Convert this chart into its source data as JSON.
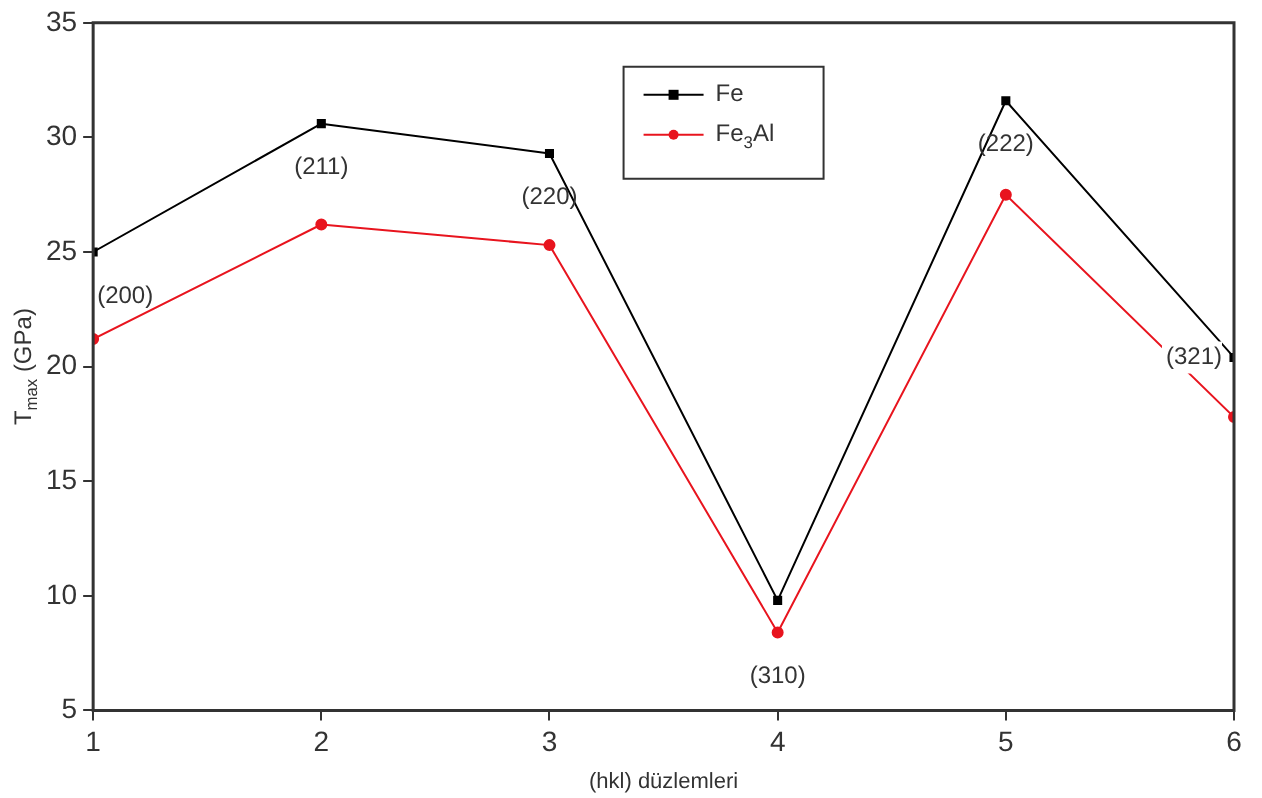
{
  "chart_data": {
    "type": "line",
    "xlabel": "(hkl) düzlemleri",
    "ylabel": "T$_{max}$ (GPa)",
    "x": [
      1,
      2,
      3,
      4,
      5,
      6
    ],
    "series": [
      {
        "name": "Fe",
        "color": "#000000",
        "values": [
          25,
          30.6,
          29.3,
          9.8,
          31.6,
          20.4
        ],
        "marker": "square"
      },
      {
        "name": "Fe$_{3}$Al",
        "color": "#e8141e",
        "values": [
          21.2,
          26.2,
          25.3,
          8.4,
          27.5,
          17.8
        ],
        "marker": "circle"
      }
    ],
    "xlim": [
      1,
      6
    ],
    "xticks": [
      1,
      2,
      3,
      4,
      5,
      6
    ],
    "ylim": [
      5,
      35
    ],
    "yticks": [
      5,
      10,
      15,
      20,
      25,
      30,
      35
    ],
    "grid": false,
    "legend": "top",
    "line_style": "solid",
    "annotations": [
      {
        "text": "(200)",
        "x": 1,
        "y": 25
      },
      {
        "text": "(211)",
        "x": 2,
        "y": 30.6
      },
      {
        "text": "(220)",
        "x": 3,
        "y": 29.3
      },
      {
        "text": "(310)",
        "x": 4,
        "y": 8.4
      },
      {
        "text": "(222)",
        "x": 5,
        "y": 31.6
      },
      {
        "text": "(321)",
        "x": 6,
        "y": 20.4
      }
    ]
  }
}
